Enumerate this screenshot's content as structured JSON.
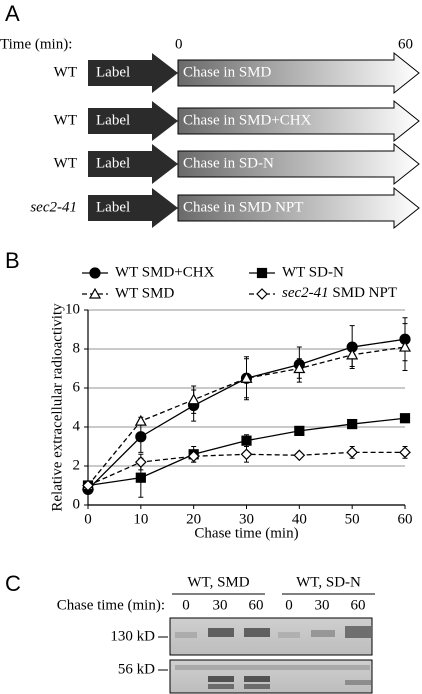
{
  "panel_a": {
    "label": "A",
    "time_label": "Time (min):",
    "time_start": "0",
    "time_end": "60",
    "rows": [
      {
        "strain": "WT",
        "pulse": "Label",
        "chase": "Chase in SMD"
      },
      {
        "strain": "WT",
        "pulse": "Label",
        "chase": "Chase in SMD+CHX"
      },
      {
        "strain": "WT",
        "pulse": "Label",
        "chase": "Chase in SD-N"
      },
      {
        "strain": "sec2-41",
        "pulse": "Label",
        "chase": "Chase in SMD NPT"
      }
    ]
  },
  "chart_data": {
    "type": "line",
    "panel_label": "B",
    "x_label": "Chase time (min)",
    "y_label": "Relative extracellular radioactivity",
    "x": [
      0,
      10,
      20,
      30,
      40,
      50,
      60
    ],
    "xlim": [
      0,
      60
    ],
    "xticks": [
      0,
      10,
      20,
      30,
      40,
      50,
      60
    ],
    "ylim": [
      0,
      10
    ],
    "yticks": [
      0,
      2,
      4,
      6,
      8,
      10
    ],
    "grid": true,
    "series": [
      {
        "name": "WT SMD+CHX",
        "color": "#000000",
        "marker": "circle",
        "dashed": false,
        "values": [
          0.8,
          3.5,
          5.1,
          6.5,
          7.2,
          8.1,
          8.5
        ],
        "errors": [
          0.1,
          0.8,
          0.8,
          1.1,
          0.9,
          1.1,
          1.1
        ]
      },
      {
        "name": "WT SD-N",
        "color": "#000000",
        "marker": "square",
        "dashed": false,
        "values": [
          1.0,
          1.4,
          2.6,
          3.3,
          3.8,
          4.15,
          4.45
        ],
        "errors": [
          0.2,
          1.0,
          0.4,
          0.3,
          0.1,
          0.1,
          0.2
        ]
      },
      {
        "name": "WT SMD",
        "color": "#000000",
        "marker": "triangle",
        "dashed": true,
        "values": [
          1.0,
          4.3,
          5.4,
          6.5,
          7.0,
          7.7,
          8.1
        ],
        "errors": [
          0.2,
          0.2,
          0.7,
          1.0,
          0.5,
          0.6,
          1.2
        ]
      },
      {
        "name": "sec2-41 SMD NPT",
        "color": "#000000",
        "marker": "diamond",
        "dashed": true,
        "values": [
          1.0,
          2.2,
          2.5,
          2.6,
          2.55,
          2.7,
          2.7
        ],
        "errors": [
          0.2,
          0.4,
          0.3,
          0.4,
          0.1,
          0.3,
          0.3
        ]
      }
    ]
  },
  "panel_c": {
    "label": "C",
    "groups": [
      "WT, SMD",
      "WT, SD-N"
    ],
    "time_label": "Chase time (min):",
    "times": [
      "0",
      "30",
      "60",
      "0",
      "30",
      "60"
    ],
    "blots": [
      "130 kD",
      "56 kD"
    ]
  }
}
